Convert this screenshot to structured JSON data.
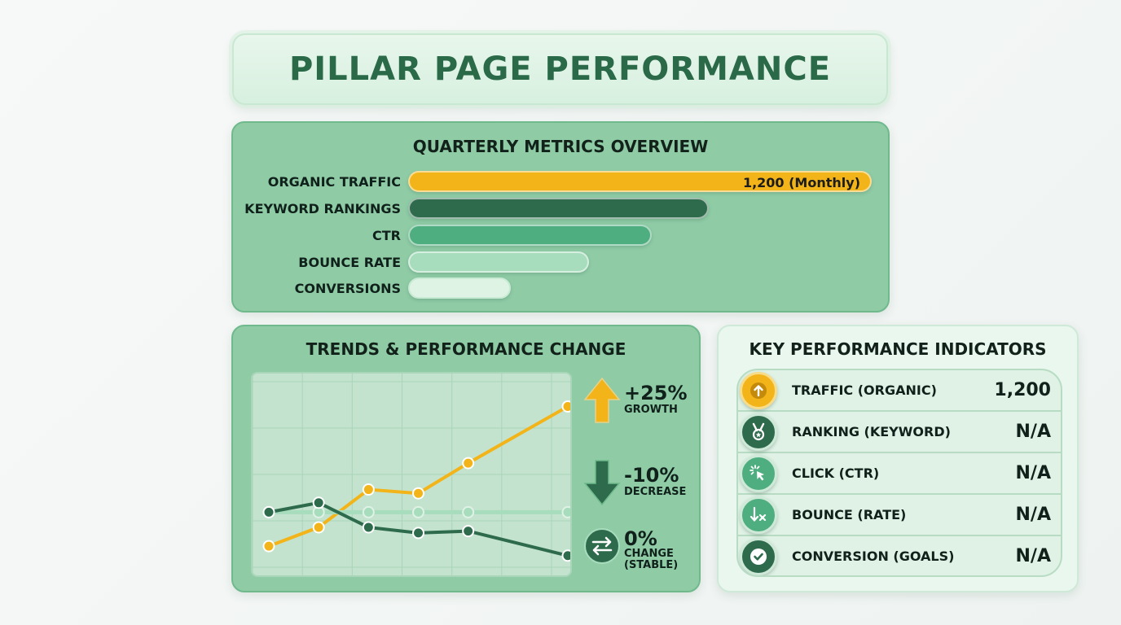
{
  "title": "PILLAR PAGE PERFORMANCE",
  "metrics": {
    "title": "QUARTERLY METRICS OVERVIEW",
    "bars": [
      {
        "label": "ORGANIC TRAFFIC",
        "value_label": "1,200 (Monthly)",
        "fraction": 1.0,
        "color": "#f2b418"
      },
      {
        "label": "KEYWORD RANKINGS",
        "value_label": "",
        "fraction": 0.648,
        "color": "#2e6b4c"
      },
      {
        "label": "CTR",
        "value_label": "",
        "fraction": 0.525,
        "color": "#4fae7f"
      },
      {
        "label": "BOUNCE RATE",
        "value_label": "",
        "fraction": 0.39,
        "color": "#a7dcbd"
      },
      {
        "label": "CONVERSIONS",
        "value_label": "",
        "fraction": 0.222,
        "color": "#def3e4"
      }
    ]
  },
  "trends": {
    "title": "TRENDS & PERFORMANCE CHANGE",
    "changes": [
      {
        "value": "+25%",
        "label": "GROWTH",
        "icon": "arrow-up-icon",
        "color": "#f2b418"
      },
      {
        "value": "-10%",
        "label": "DECREASE",
        "icon": "arrow-down-icon",
        "color": "#2e6b4c"
      },
      {
        "value": "0%",
        "label": "CHANGE\n(STABLE)",
        "icon": "swap-arrows-icon",
        "color": "#2e6b4c"
      }
    ]
  },
  "chart_data": {
    "type": "line",
    "x": [
      1,
      2,
      3,
      4,
      5,
      6,
      7
    ],
    "ylim": [
      0,
      10
    ],
    "grid": true,
    "series": [
      {
        "values": [
          1.2,
          2.2,
          4.2,
          4.0,
          5.6,
          8.6
        ],
        "x": [
          1,
          2,
          3,
          4,
          5,
          7
        ],
        "color": "#f2b418"
      },
      {
        "values": [
          3.0,
          3.0,
          3.0,
          3.0,
          3.0,
          3.0
        ],
        "x": [
          1,
          2,
          3,
          4,
          5,
          7
        ],
        "color": "#a7dcbd"
      },
      {
        "values": [
          3.0,
          3.5,
          2.2,
          1.9,
          2.0,
          0.7
        ],
        "x": [
          1,
          2,
          3,
          4,
          5,
          7
        ],
        "color": "#2e6b4c"
      }
    ]
  },
  "kpi": {
    "title": "KEY PERFORMANCE INDICATORS",
    "rows": [
      {
        "label": "TRAFFIC (ORGANIC)",
        "value": "1,200",
        "icon": "arrow-up-circle-icon",
        "color": "#f2b418"
      },
      {
        "label": "RANKING (KEYWORD)",
        "value": "N/A",
        "icon": "medal-icon",
        "color": "#2e6b4c"
      },
      {
        "label": "CLICK (CTR)",
        "value": "N/A",
        "icon": "cursor-click-icon",
        "color": "#4fae7f"
      },
      {
        "label": "BOUNCE (RATE)",
        "value": "N/A",
        "icon": "bounce-arrow-icon",
        "color": "#4fae7f"
      },
      {
        "label": "CONVERSION (GOALS)",
        "value": "N/A",
        "icon": "check-circle-icon",
        "color": "#2e6b4c"
      }
    ]
  }
}
